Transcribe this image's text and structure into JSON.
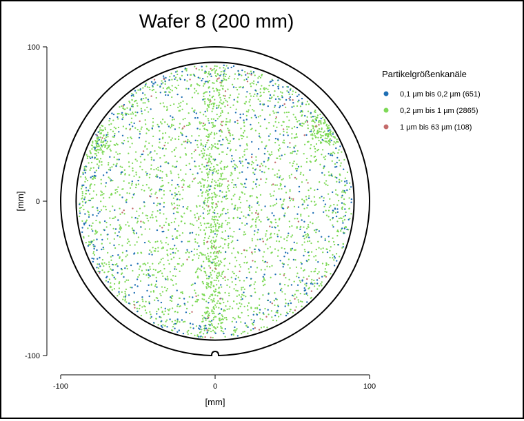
{
  "chart_data": {
    "type": "scatter",
    "title": "Wafer 8 (200 mm)",
    "xlabel": "[mm]",
    "ylabel": "[mm]",
    "xlim": [
      -100,
      100
    ],
    "ylim": [
      -100,
      100
    ],
    "x_ticks": [
      -100,
      0,
      100
    ],
    "y_ticks": [
      -100,
      0,
      100
    ],
    "x_tick_labels": [
      "-100",
      "0",
      "100"
    ],
    "y_tick_labels": [
      "-100",
      "0",
      "100"
    ],
    "wafer_diameter_mm": 200,
    "inspection_radius_mm": 90,
    "grid": false,
    "legend_title": "Partikelgrößenkanäle",
    "legend_position": "right",
    "series": [
      {
        "name": "0,1 µm bis 0,2 µm (651)",
        "count": 651,
        "color": "#1f6fb4",
        "seed": 11
      },
      {
        "name": "0,2 µm bis 1 µm (2865)",
        "count": 2865,
        "color": "#7ed957",
        "seed": 29
      },
      {
        "name": "1 µm bis 63 µm (108)",
        "count": 108,
        "color": "#c46b6b",
        "seed": 53
      }
    ]
  }
}
